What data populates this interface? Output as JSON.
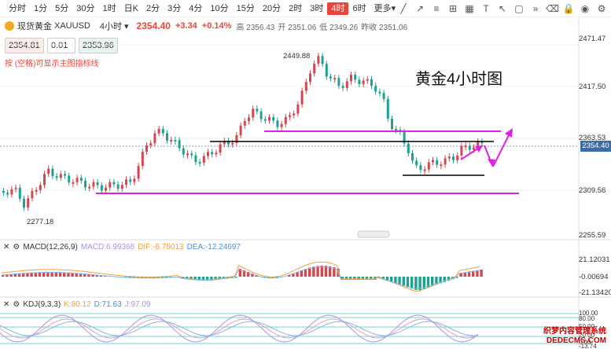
{
  "timeframes": [
    "分时",
    "1分",
    "5分",
    "30分",
    "1时",
    "日K",
    "2分",
    "3分",
    "4分",
    "10分",
    "15分",
    "20分",
    "2时",
    "3时",
    "4时",
    "6时",
    "更多▾"
  ],
  "active_timeframe": "4时",
  "symbol": {
    "name": "现货黄金",
    "code": "XAUUSD",
    "period": "4小时 ▾",
    "price": "2354.40",
    "change": "+3.34",
    "change_pct": "+0.14%",
    "high": "高 2356.43",
    "open": "开 2351.06",
    "low": "低 2349.26",
    "prev": "昨收 2351.06"
  },
  "order": {
    "bid": "2354.81",
    "step": "0.01",
    "ask": "2353.96"
  },
  "hint": "按 (空格)可显示主图指标线",
  "chart_title": "黄金4小时图",
  "price_axis": [
    "2471.47",
    "2417.50",
    "2363.53",
    "2309.56",
    "2255.59"
  ],
  "current_price_label": "2354.40",
  "annotations": {
    "high": "2449.88",
    "low": "2277.18"
  },
  "macd": {
    "label": "MACD(12,26,9)",
    "macd": "MACD:6.99368",
    "dif": "DIF:-8.75013",
    "dea": "DEA:-12.24697",
    "axis": [
      "21.12031",
      "-0.00694",
      "-21.13420"
    ]
  },
  "kdj": {
    "label": "KDJ(9,3,3)",
    "k": "K:80.12",
    "d": "D:71.63",
    "j": "J:97.09",
    "axis": [
      "100.00",
      "80.00",
      "50.00",
      "20.00",
      "0.00",
      "-13.74"
    ]
  },
  "watermark": {
    "line1": "织梦内容管理系统",
    "line2": "DEDECMS.COM"
  }
}
